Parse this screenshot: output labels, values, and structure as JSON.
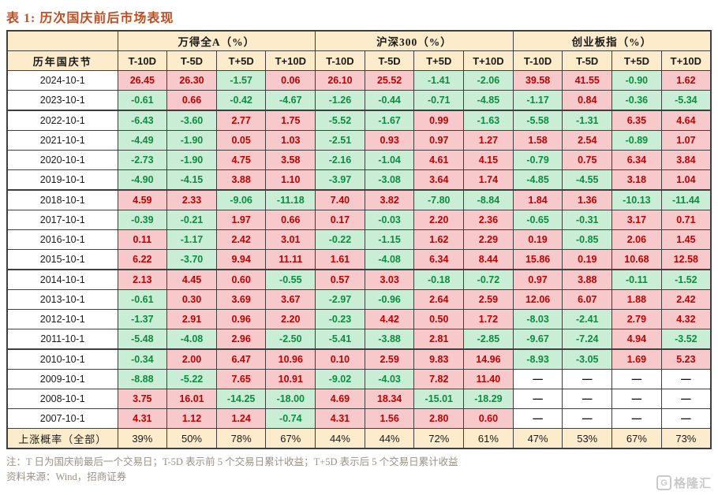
{
  "title": "表 1:  历次国庆前后市场表现",
  "chart_data": {
    "type": "table",
    "title": "历次国庆前后市场表现",
    "row_header": "历年国庆节",
    "column_groups": [
      "万得全A（%）",
      "沪深300（%）",
      "创业板指（%）"
    ],
    "sub_columns": [
      "T-10D",
      "T-5D",
      "T+5D",
      "T+10D"
    ],
    "rows": [
      {
        "year": "2024-10-1",
        "values": [
          "26.45",
          "26.30",
          "-1.57",
          "0.06",
          "26.10",
          "25.52",
          "-1.41",
          "-2.06",
          "39.58",
          "41.55",
          "-0.90",
          "1.62"
        ]
      },
      {
        "year": "2023-10-1",
        "values": [
          "-0.61",
          "0.66",
          "-0.42",
          "-4.67",
          "-1.26",
          "-0.44",
          "-0.71",
          "-4.85",
          "-1.17",
          "0.84",
          "-0.36",
          "-5.34"
        ]
      },
      {
        "year": "2022-10-1",
        "values": [
          "-6.43",
          "-3.60",
          "2.77",
          "1.75",
          "-5.52",
          "-1.67",
          "0.99",
          "-1.63",
          "-5.58",
          "-1.31",
          "6.35",
          "4.64"
        ]
      },
      {
        "year": "2021-10-1",
        "values": [
          "-4.49",
          "-1.90",
          "0.05",
          "1.03",
          "-2.51",
          "0.93",
          "0.97",
          "1.27",
          "1.58",
          "2.54",
          "-0.89",
          "1.07"
        ]
      },
      {
        "year": "2020-10-1",
        "values": [
          "-2.73",
          "-1.90",
          "4.75",
          "3.58",
          "-2.16",
          "-1.04",
          "4.61",
          "4.15",
          "-0.79",
          "0.75",
          "6.34",
          "3.84"
        ]
      },
      {
        "year": "2019-10-1",
        "values": [
          "-4.90",
          "-4.15",
          "3.88",
          "1.10",
          "-3.97",
          "-3.08",
          "3.64",
          "1.74",
          "-4.85",
          "-4.55",
          "3.18",
          "1.04"
        ]
      },
      {
        "year": "2018-10-1",
        "values": [
          "4.59",
          "2.33",
          "-9.06",
          "-11.18",
          "7.40",
          "3.82",
          "-7.80",
          "-8.84",
          "1.84",
          "1.36",
          "-10.13",
          "-11.44"
        ]
      },
      {
        "year": "2017-10-1",
        "values": [
          "-0.39",
          "-0.21",
          "1.97",
          "0.66",
          "0.17",
          "-0.03",
          "2.20",
          "2.36",
          "-0.65",
          "-0.31",
          "3.17",
          "0.71"
        ]
      },
      {
        "year": "2016-10-1",
        "values": [
          "0.11",
          "-1.17",
          "2.42",
          "3.01",
          "-0.22",
          "-1.15",
          "1.62",
          "2.29",
          "0.19",
          "-0.85",
          "2.06",
          "1.45"
        ]
      },
      {
        "year": "2015-10-1",
        "values": [
          "6.22",
          "-3.70",
          "9.94",
          "11.11",
          "1.61",
          "-4.08",
          "6.34",
          "8.44",
          "15.86",
          "0.19",
          "10.68",
          "12.58"
        ]
      },
      {
        "year": "2014-10-1",
        "values": [
          "2.13",
          "4.45",
          "0.60",
          "-0.55",
          "0.57",
          "3.03",
          "-0.18",
          "-0.72",
          "0.97",
          "3.88",
          "-0.11",
          "-1.52"
        ]
      },
      {
        "year": "2013-10-1",
        "values": [
          "-0.61",
          "0.30",
          "3.69",
          "3.67",
          "-2.97",
          "-0.96",
          "2.64",
          "2.59",
          "12.06",
          "6.07",
          "1.88",
          "2.42"
        ]
      },
      {
        "year": "2012-10-1",
        "values": [
          "-1.37",
          "2.91",
          "0.96",
          "2.20",
          "-0.23",
          "4.42",
          "0.50",
          "1.72",
          "-8.03",
          "-2.41",
          "2.79",
          "4.32"
        ]
      },
      {
        "year": "2011-10-1",
        "values": [
          "-5.48",
          "-4.08",
          "2.96",
          "-2.50",
          "-5.41",
          "-3.88",
          "2.81",
          "-2.85",
          "-9.67",
          "-7.24",
          "4.94",
          "-3.52"
        ]
      },
      {
        "year": "2010-10-1",
        "values": [
          "-0.34",
          "2.00",
          "6.47",
          "10.96",
          "0.10",
          "2.59",
          "9.83",
          "14.96",
          "-8.93",
          "-3.05",
          "1.69",
          "5.23"
        ]
      },
      {
        "year": "2009-10-1",
        "values": [
          "-8.88",
          "-5.22",
          "7.65",
          "10.91",
          "-9.02",
          "-4.03",
          "7.82",
          "11.40",
          "—",
          "—",
          "—",
          "—"
        ]
      },
      {
        "year": "2008-10-1",
        "values": [
          "3.75",
          "16.01",
          "-14.25",
          "-18.00",
          "4.69",
          "18.34",
          "-15.01",
          "-18.29",
          "—",
          "—",
          "—",
          "—"
        ]
      },
      {
        "year": "2007-10-1",
        "values": [
          "4.31",
          "1.12",
          "1.24",
          "-0.74",
          "4.31",
          "1.56",
          "2.80",
          "0.60",
          "—",
          "—",
          "—",
          "—"
        ]
      }
    ],
    "summary_row": {
      "label": "上涨概率（全部）",
      "values": [
        "39%",
        "50%",
        "78%",
        "67%",
        "44%",
        "44%",
        "72%",
        "61%",
        "47%",
        "53%",
        "67%",
        "73%"
      ]
    }
  },
  "notes": {
    "note": "注：T 日为国庆前最后一个交易日；T-5D 表示前 5 个交易日累计收益；T+5D 表示后 5 个交易日累计收益",
    "source": "资料来源：Wind，招商证券"
  },
  "watermark": {
    "logo_letter": "G",
    "text": "格隆汇"
  },
  "colors": {
    "title_text": "#c14e20",
    "header_bg": "#fdeccb",
    "positive_bg": "#f8c9ca",
    "positive_text": "#c00000",
    "negative_bg": "#c9eed5",
    "negative_text": "#0d8c3f",
    "border": "#3f3f3f",
    "note_text": "#9a9187"
  }
}
